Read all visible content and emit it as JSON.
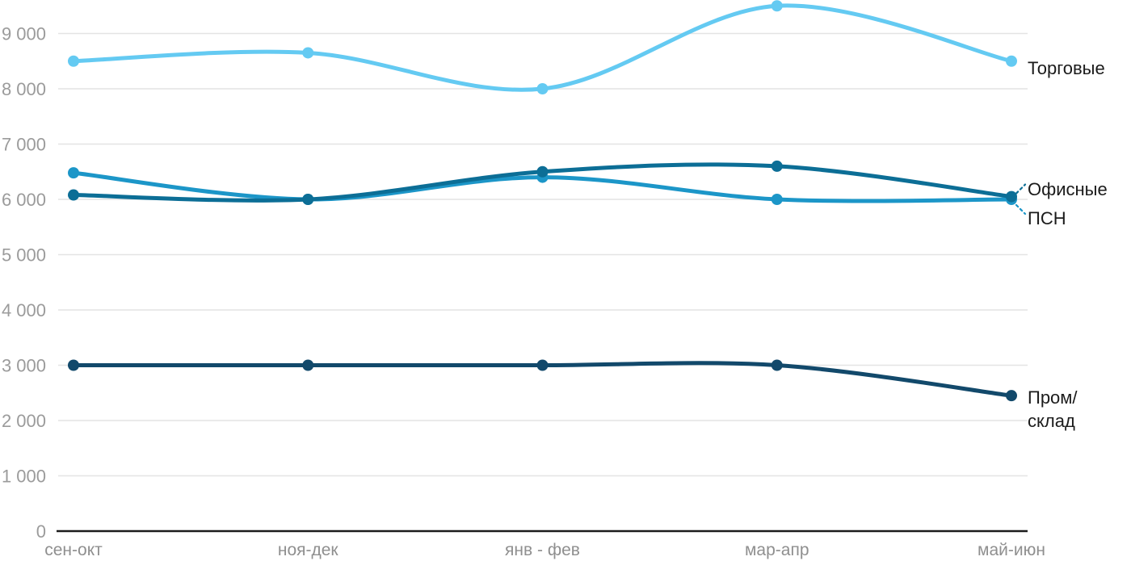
{
  "chart_data": {
    "type": "line",
    "title": "",
    "xlabel": "",
    "ylabel": "",
    "categories": [
      "сен-окт",
      "ноя-дек",
      "янв - фев",
      "мар-апр",
      "май-июн"
    ],
    "y_axis": {
      "min": 0,
      "max": 9500,
      "tick_step": 1000,
      "ticks": [
        {
          "value": 0,
          "label": "0"
        },
        {
          "value": 1000,
          "label": "1 000"
        },
        {
          "value": 2000,
          "label": "2 000"
        },
        {
          "value": 3000,
          "label": "3 000"
        },
        {
          "value": 4000,
          "label": "4 000"
        },
        {
          "value": 5000,
          "label": "5 000"
        },
        {
          "value": 6000,
          "label": "6 000"
        },
        {
          "value": 7000,
          "label": "7 000"
        },
        {
          "value": 8000,
          "label": "8 000"
        },
        {
          "value": 9000,
          "label": "9 000"
        }
      ]
    },
    "grid": "horizontal-only",
    "legend_position": "right-of-line-endpoints",
    "series": [
      {
        "name": "Торговые",
        "label": "Торговые",
        "color": "#64CAF2",
        "values": [
          8500,
          8650,
          8000,
          9500,
          8500
        ],
        "leader_line": false
      },
      {
        "name": "ПСН",
        "label": "ПСН",
        "color": "#1C96C8",
        "values": [
          6480,
          6000,
          6400,
          6000,
          6000
        ],
        "leader_line": true
      },
      {
        "name": "Офисные",
        "label": "Офисные",
        "color": "#0C6E96",
        "values": [
          6080,
          6000,
          6500,
          6600,
          6050
        ],
        "leader_line": true
      },
      {
        "name": "Пром/склад",
        "label": "Пром/\nсклад",
        "color": "#12496B",
        "values": [
          3000,
          3000,
          3000,
          3000,
          2450
        ],
        "leader_line": false
      }
    ],
    "colors": {
      "gridline": "#e4e4e4",
      "axis_line": "#1b1b1b",
      "y_tick_text": "#9b9b9b",
      "x_tick_text": "#8f8f8f",
      "series_label_text": "#1b1b1b"
    }
  }
}
